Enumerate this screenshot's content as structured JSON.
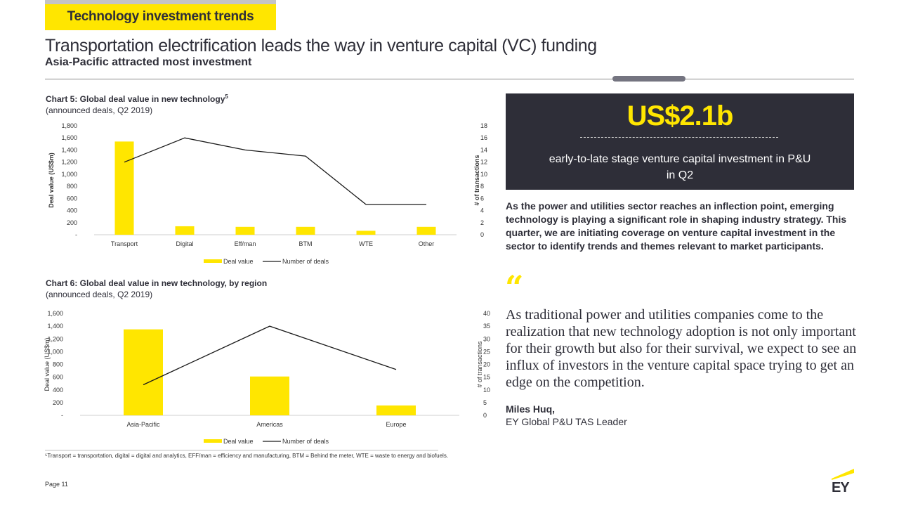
{
  "header": {
    "section_tag": "Technology investment trends",
    "title": "Transportation electrification leads the way in venture capital (VC) funding",
    "subtitle": "Asia-Pacific attracted most investment"
  },
  "colors": {
    "accent": "#ffe600",
    "dark": "#2e2e38",
    "line": "#1a1a1a",
    "pill": "#747480"
  },
  "chart5": {
    "title": "Chart 5: Global deal value in new technology",
    "title_sup": "5",
    "subtitle": "(announced deals, Q2 2019)"
  },
  "chart6": {
    "title": "Chart 6: Global deal value in new technology, by region",
    "subtitle": "(announced deals, Q2 2019)"
  },
  "chart_data": [
    {
      "type": "bar",
      "categories": [
        "Transport",
        "Digital",
        "Eff/man",
        "BTM",
        "WTE",
        "Other"
      ],
      "series": [
        {
          "name": "Deal value",
          "type": "bar",
          "axis": "left",
          "values": [
            1540,
            140,
            130,
            130,
            65,
            130
          ]
        },
        {
          "name": "Number of deals",
          "type": "line",
          "axis": "right",
          "values": [
            12,
            16,
            14,
            13,
            5,
            5
          ]
        }
      ],
      "ylabel": "Deal value (US$m)",
      "y2label": "# of transactions",
      "ylim": [
        0,
        1800
      ],
      "y2lim": [
        0,
        18
      ],
      "yticks": [
        "-",
        "200",
        "400",
        "600",
        "800",
        "1,000",
        "1,200",
        "1,400",
        "1,600",
        "1,800"
      ],
      "y2ticks": [
        "0",
        "2",
        "4",
        "6",
        "8",
        "10",
        "12",
        "14",
        "16",
        "18"
      ],
      "legend": "bottom",
      "grid": false
    },
    {
      "type": "bar",
      "categories": [
        "Asia-Pacific",
        "Americas",
        "Europe"
      ],
      "series": [
        {
          "name": "Deal value",
          "type": "bar",
          "axis": "left",
          "values": [
            1350,
            610,
            155
          ]
        },
        {
          "name": "Number of deals",
          "type": "line",
          "axis": "right",
          "values": [
            12,
            35,
            18
          ]
        }
      ],
      "ylabel": "Deal value (US$m)",
      "y2label": "# of transactions",
      "ylim": [
        0,
        1600
      ],
      "y2lim": [
        0,
        40
      ],
      "yticks": [
        "-",
        "200",
        "400",
        "600",
        "800",
        "1,000",
        "1,200",
        "1,400",
        "1,600"
      ],
      "y2ticks": [
        "0",
        "5",
        "10",
        "15",
        "20",
        "25",
        "30",
        "35",
        "40"
      ],
      "legend": "bottom",
      "grid": false
    }
  ],
  "footnote": "⁵Transport = transportation, digital = digital and analytics, EFF/man = efficiency and manufacturing, BTM = Behind the meter, WTE = waste to energy and biofuels.",
  "page": "Page 11",
  "stat": {
    "value": "US$2.1b",
    "description": "early-to-late stage venture capital investment in P&U in Q2"
  },
  "intro": "As the power and utilities sector reaches an inflection point, emerging technology is playing a significant role in shaping industry strategy. This quarter, we are initiating coverage on venture capital investment in the sector to identify trends and themes relevant to market participants.",
  "quote": {
    "mark": "“",
    "text": "As traditional power and utilities companies come to the realization that new technology adoption is not only important for their growth but also for their survival, we expect to see an influx of investors in the venture capital space trying to get an edge on the competition.",
    "author": "Miles Huq,",
    "role": "EY Global P&U TAS Leader"
  },
  "logo": {
    "text": "EY",
    "icon": "ey-logo-icon"
  }
}
